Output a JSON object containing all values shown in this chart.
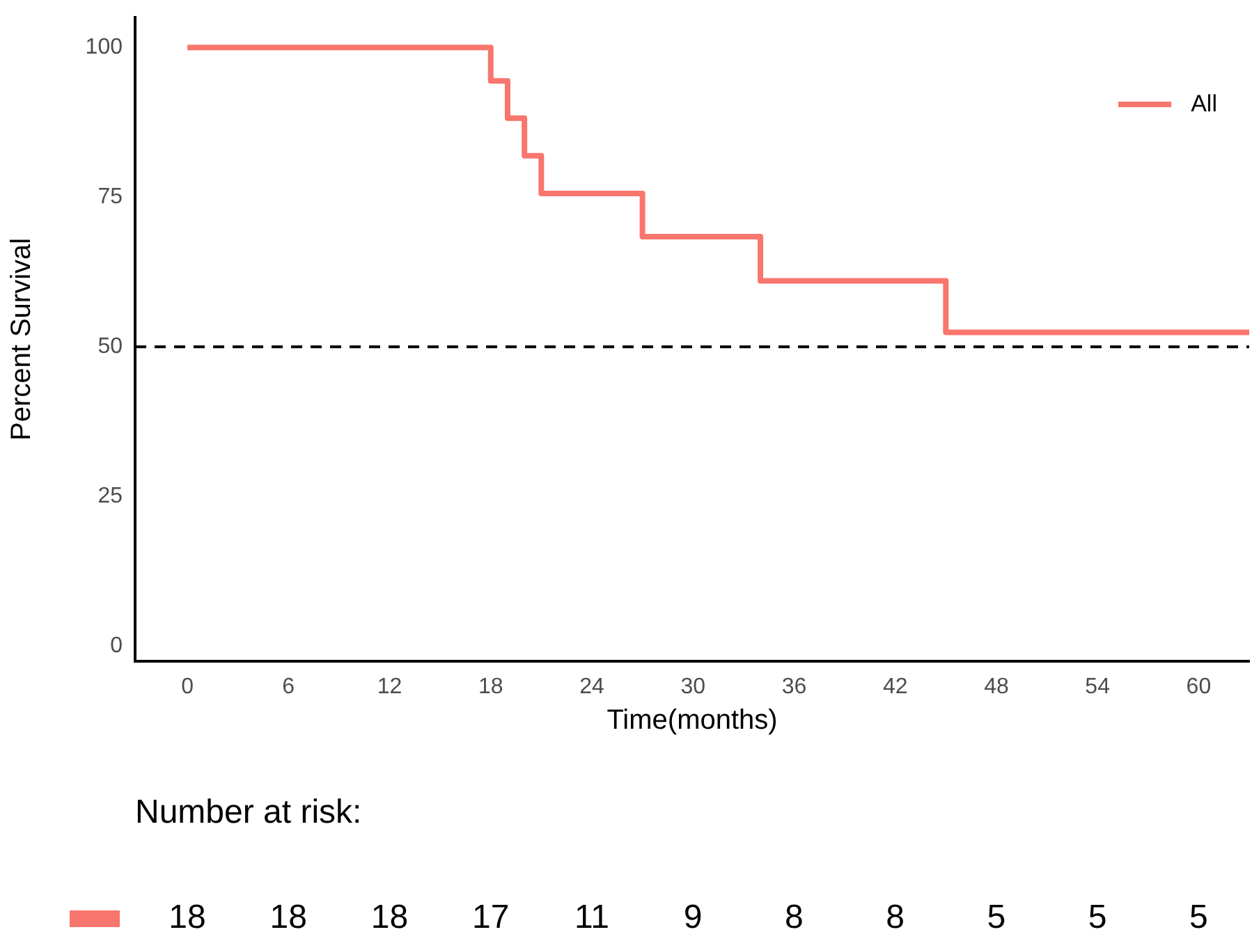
{
  "chart_data": [
    {
      "type": "step",
      "xlabel": "Time(months)",
      "ylabel": "Percent Survival",
      "x": [
        0,
        18,
        19,
        20,
        21,
        27,
        34,
        45,
        63
      ],
      "series": [
        {
          "name": "All",
          "color": "#f8766d",
          "values": [
            100,
            94.4,
            88.2,
            81.9,
            75.6,
            68.4,
            61,
            52.4,
            52.4
          ]
        }
      ],
      "xlim": [
        -3.1,
        63
      ],
      "xticks": [
        0,
        6,
        12,
        18,
        24,
        30,
        36,
        42,
        48,
        54,
        60
      ],
      "ylim": [
        -2.5,
        105
      ],
      "yticks": [
        0,
        25,
        50,
        75,
        100
      ],
      "ref_lines": [
        {
          "axis": "y",
          "value": 50,
          "color": "#000000",
          "line_style": "dashed"
        }
      ],
      "grid": false,
      "legend": "top right"
    },
    {
      "type": "other",
      "title": "Number at risk:",
      "categories": [
        null,
        null,
        null,
        null,
        null,
        null,
        null,
        null,
        null,
        null,
        null
      ],
      "series": [
        {
          "color": "#f8766d",
          "values": [
            18,
            18,
            18,
            17,
            11,
            9,
            8,
            8,
            5,
            5,
            5
          ]
        }
      ],
      "data_labels": true
    }
  ]
}
